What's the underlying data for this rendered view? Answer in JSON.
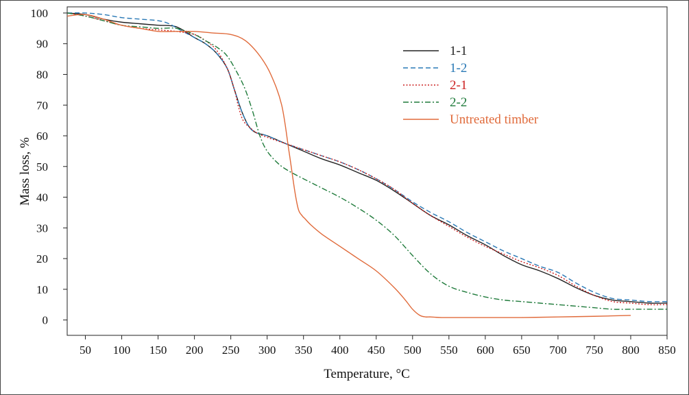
{
  "chart_data": {
    "type": "line",
    "xlabel": "Temperature, °C",
    "ylabel": "Mass loss, %",
    "xlim": [
      25,
      850
    ],
    "ylim": [
      -5,
      102
    ],
    "xticks": [
      "50",
      "100",
      "150",
      "200",
      "250",
      "300",
      "350",
      "400",
      "450",
      "500",
      "550",
      "600",
      "650",
      "700",
      "750",
      "800",
      "850"
    ],
    "yticks": [
      "0",
      "10",
      "20",
      "30",
      "40",
      "50",
      "60",
      "70",
      "80",
      "90",
      "100"
    ],
    "legend_position": "top-right",
    "grid": false,
    "series": [
      {
        "name": "1-1",
        "color": "#222222",
        "dash": "solid",
        "x": [
          25,
          50,
          75,
          100,
          125,
          150,
          175,
          200,
          215,
          230,
          245,
          255,
          265,
          275,
          285,
          300,
          325,
          350,
          375,
          400,
          425,
          450,
          475,
          500,
          525,
          550,
          575,
          600,
          625,
          650,
          675,
          700,
          725,
          750,
          775,
          800,
          825,
          850
        ],
        "y": [
          100,
          99.5,
          98,
          97,
          96.5,
          96,
          95.5,
          92,
          90,
          87,
          82,
          75,
          68,
          63,
          61,
          60,
          57.5,
          55,
          52.5,
          50.5,
          48,
          45.5,
          42,
          38,
          34,
          31,
          27.5,
          24.5,
          21,
          18,
          16,
          13.5,
          10.5,
          8,
          6.5,
          6,
          5.5,
          5.5
        ]
      },
      {
        "name": "1-2",
        "color": "#2878b5",
        "dash": "dashed",
        "x": [
          25,
          50,
          75,
          100,
          125,
          150,
          165,
          180,
          200,
          215,
          230,
          245,
          255,
          265,
          275,
          285,
          300,
          325,
          350,
          375,
          400,
          425,
          450,
          475,
          500,
          525,
          550,
          575,
          600,
          625,
          650,
          675,
          700,
          725,
          750,
          775,
          800,
          825,
          850
        ],
        "y": [
          100,
          100,
          99.5,
          98.5,
          98,
          97.5,
          96.5,
          94.5,
          92,
          90,
          87,
          82,
          75,
          68,
          63,
          61,
          60,
          57.5,
          55.5,
          53.5,
          51.5,
          49,
          46,
          42.5,
          38.5,
          35,
          32,
          28.5,
          25.5,
          22.5,
          20,
          17.5,
          15.5,
          12,
          9,
          7,
          6.5,
          6,
          6
        ]
      },
      {
        "name": "2-1",
        "color": "#cc1f1f",
        "dash": "dotted",
        "x": [
          25,
          50,
          75,
          100,
          125,
          150,
          175,
          200,
          215,
          230,
          245,
          255,
          260,
          265,
          270,
          275,
          285,
          300,
          325,
          350,
          375,
          400,
          425,
          450,
          475,
          500,
          525,
          550,
          575,
          600,
          625,
          650,
          675,
          700,
          725,
          750,
          775,
          800,
          825,
          850
        ],
        "y": [
          100,
          99,
          97.5,
          96,
          95,
          94.5,
          94,
          93,
          91,
          88,
          82,
          75,
          70,
          66,
          64,
          63,
          61,
          59.5,
          57.5,
          55.5,
          53.5,
          51.5,
          49,
          46,
          42.5,
          38,
          34,
          30.5,
          27,
          24,
          21.5,
          19,
          17,
          14.5,
          11,
          8,
          6,
          5.5,
          5,
          5
        ]
      },
      {
        "name": "2-2",
        "color": "#1e7a3a",
        "dash": "dashdot",
        "x": [
          25,
          50,
          75,
          100,
          125,
          150,
          175,
          200,
          215,
          230,
          245,
          260,
          270,
          280,
          290,
          300,
          315,
          330,
          350,
          375,
          400,
          425,
          450,
          475,
          500,
          525,
          550,
          575,
          600,
          625,
          650,
          675,
          700,
          725,
          750,
          775,
          800,
          825,
          850
        ],
        "y": [
          100,
          99,
          97.5,
          96,
          95.5,
          95,
          95,
          93,
          91,
          89,
          86,
          80,
          75,
          68,
          60,
          55,
          51,
          48.5,
          46,
          43,
          40,
          36.5,
          32.5,
          27.5,
          21,
          15,
          11,
          9,
          7.5,
          6.5,
          6,
          5.5,
          5,
          4.5,
          4,
          3.5,
          3.5,
          3.5,
          3.5
        ]
      },
      {
        "name": "Untreated timber",
        "color": "#e06a3a",
        "dash": "solid",
        "x": [
          25,
          50,
          75,
          100,
          125,
          150,
          175,
          200,
          225,
          250,
          270,
          290,
          305,
          320,
          330,
          338,
          343,
          348,
          352,
          360,
          375,
          400,
          425,
          450,
          475,
          490,
          500,
          510,
          518,
          525,
          540,
          575,
          600,
          650,
          700,
          750,
          800
        ],
        "y": [
          99,
          99.5,
          98,
          96,
          95,
          94,
          94,
          94,
          93.5,
          93,
          91,
          86,
          80,
          70,
          55,
          42,
          36,
          34,
          33,
          31,
          28,
          24,
          20,
          16,
          10.5,
          6.5,
          3.5,
          1.5,
          1,
          1,
          0.8,
          0.8,
          0.8,
          0.8,
          1,
          1.2,
          1.5
        ]
      }
    ]
  }
}
